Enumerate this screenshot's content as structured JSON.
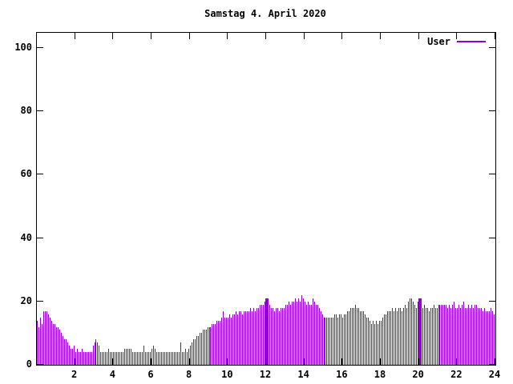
{
  "title": "Samstag 4. April 2020",
  "legend": {
    "label": "User"
  },
  "colors": {
    "bar": "#9400D3",
    "axis": "#000000",
    "background": "#ffffff"
  },
  "chart_data": {
    "type": "bar",
    "title": "Samstag 4. April 2020",
    "series_name": "User",
    "xlabel": "",
    "ylabel": "",
    "x_unit": "hour-of-day",
    "interval_minutes": 5,
    "xlim": [
      0,
      24
    ],
    "ylim": [
      0,
      100
    ],
    "x_ticks": [
      2,
      4,
      6,
      8,
      10,
      12,
      14,
      16,
      18,
      20,
      22,
      24
    ],
    "y_ticks": [
      0,
      20,
      40,
      60,
      80,
      100
    ],
    "grid": "off",
    "legend_position": "top-right-inside",
    "bar_color": "#9400D3",
    "highlight_indices": [
      144,
      240
    ],
    "values": [
      14,
      12,
      15,
      13,
      17,
      17,
      17,
      16,
      15,
      14,
      13,
      13,
      12,
      12,
      11,
      10,
      9,
      8,
      8,
      7,
      6,
      5,
      5,
      6,
      4,
      5,
      4,
      4,
      5,
      4,
      4,
      4,
      4,
      4,
      4,
      6,
      7,
      8,
      7,
      6,
      4,
      4,
      4,
      4,
      4,
      5,
      4,
      4,
      4,
      4,
      4,
      4,
      4,
      4,
      4,
      5,
      5,
      5,
      5,
      5,
      4,
      4,
      4,
      4,
      4,
      4,
      4,
      6,
      4,
      4,
      4,
      4,
      5,
      6,
      5,
      4,
      4,
      4,
      4,
      4,
      4,
      4,
      4,
      4,
      4,
      4,
      4,
      4,
      4,
      4,
      7,
      4,
      4,
      5,
      4,
      5,
      6,
      7,
      8,
      8,
      9,
      9,
      10,
      10,
      11,
      11,
      11,
      12,
      12,
      12,
      13,
      13,
      13,
      14,
      14,
      14,
      15,
      17,
      15,
      15,
      15,
      16,
      15,
      16,
      16,
      17,
      16,
      17,
      17,
      16,
      17,
      17,
      17,
      17,
      18,
      17,
      18,
      17,
      18,
      18,
      19,
      19,
      19,
      20,
      21,
      19,
      19,
      18,
      18,
      17,
      18,
      18,
      17,
      18,
      18,
      18,
      19,
      19,
      20,
      19,
      20,
      20,
      21,
      20,
      21,
      20,
      22,
      21,
      20,
      19,
      20,
      19,
      19,
      21,
      20,
      19,
      19,
      18,
      17,
      16,
      15,
      15,
      15,
      15,
      15,
      15,
      15,
      16,
      16,
      15,
      16,
      16,
      15,
      16,
      16,
      17,
      17,
      18,
      18,
      18,
      19,
      18,
      18,
      17,
      17,
      17,
      16,
      15,
      15,
      14,
      13,
      14,
      13,
      14,
      13,
      14,
      14,
      15,
      16,
      16,
      17,
      17,
      17,
      18,
      17,
      18,
      17,
      18,
      18,
      17,
      18,
      19,
      18,
      20,
      21,
      21,
      20,
      19,
      18,
      20,
      21,
      19,
      18,
      19,
      18,
      18,
      17,
      18,
      18,
      19,
      18,
      18,
      19,
      19,
      19,
      19,
      19,
      19,
      18,
      19,
      18,
      19,
      20,
      18,
      18,
      19,
      18,
      19,
      20,
      18,
      18,
      19,
      18,
      19,
      18,
      19,
      19,
      18,
      18,
      18,
      17,
      18,
      17,
      17,
      17,
      18,
      17,
      16
    ]
  }
}
